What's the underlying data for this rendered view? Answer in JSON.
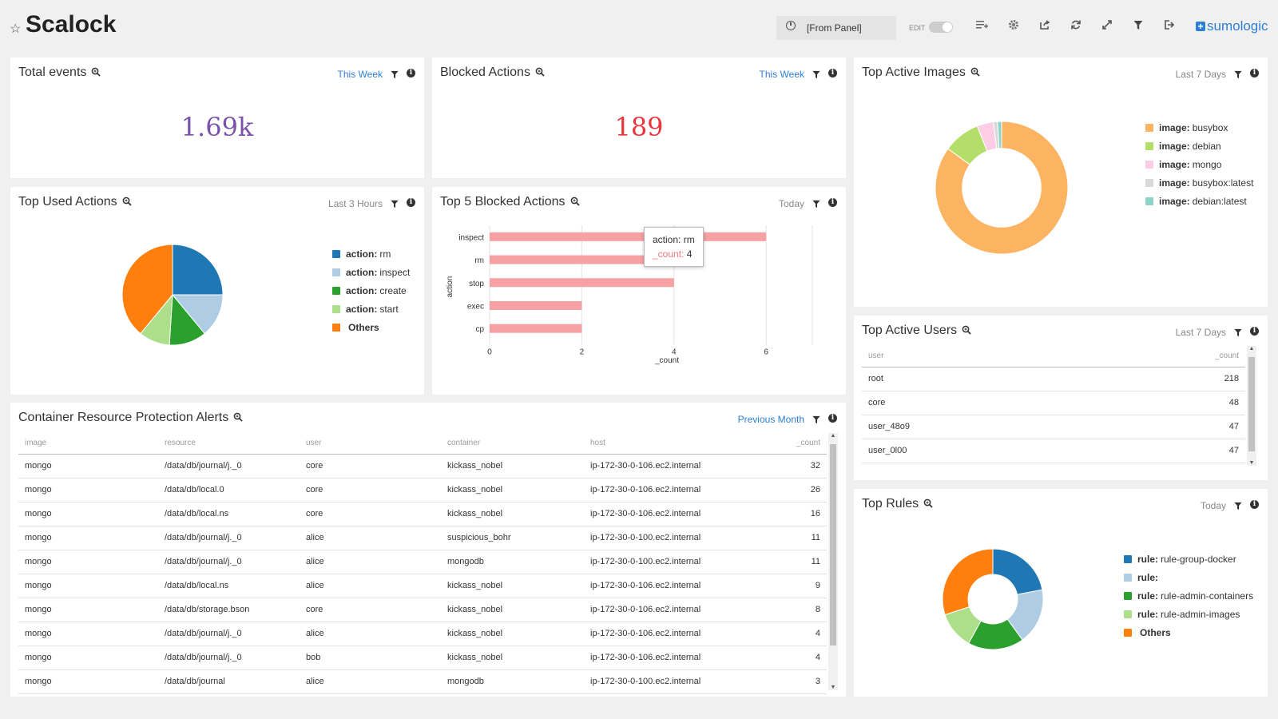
{
  "header": {
    "title": "Scalock",
    "time_range": "[From Panel]",
    "edit_label": "EDIT",
    "logo_text": "sumologic"
  },
  "colors": {
    "blue": "#1f77b4",
    "light_blue": "#aecde4",
    "green": "#2ca02c",
    "light_green": "#addf8a",
    "orange": "#ff7f0e",
    "peach": "#fdb462",
    "lime": "#b3de69",
    "pink": "#fccde5",
    "gray": "#d9d9d9",
    "teal": "#8dd3c7",
    "purple": "#7b52ab",
    "red": "#e8383d",
    "bar": "#f7a1a4"
  },
  "panels": {
    "total_events": {
      "title": "Total events",
      "time": "This Week",
      "value": "1.69k"
    },
    "blocked_actions": {
      "title": "Blocked Actions",
      "time": "This Week",
      "value": "189"
    },
    "top_used_actions": {
      "title": "Top Used Actions",
      "time": "Last 3 Hours",
      "legend": [
        {
          "key": "action:",
          "label": "rm"
        },
        {
          "key": "action:",
          "label": "inspect"
        },
        {
          "key": "action:",
          "label": "create"
        },
        {
          "key": "action:",
          "label": "start"
        },
        {
          "key": "",
          "label": "Others"
        }
      ]
    },
    "top5_blocked": {
      "title": "Top 5 Blocked Actions",
      "time": "Today",
      "ylabel": "action",
      "xlabel": "_count",
      "tooltip": {
        "key1": "action:",
        "val1": "rm",
        "key2": "_count:",
        "val2": "4"
      }
    },
    "top_active_images": {
      "title": "Top Active Images",
      "time": "Last 7 Days",
      "legend": [
        {
          "key": "image:",
          "label": "busybox"
        },
        {
          "key": "image:",
          "label": "debian"
        },
        {
          "key": "image:",
          "label": "mongo"
        },
        {
          "key": "image:",
          "label": "busybox:latest"
        },
        {
          "key": "image:",
          "label": "debian:latest"
        }
      ]
    },
    "top_active_users": {
      "title": "Top Active Users",
      "time": "Last 7 Days",
      "columns": [
        "user",
        "_count"
      ],
      "rows": [
        [
          "root",
          "218"
        ],
        [
          "core",
          "48"
        ],
        [
          "user_48o9",
          "47"
        ],
        [
          "user_0l00",
          "47"
        ]
      ]
    },
    "top_rules": {
      "title": "Top Rules",
      "time": "Today",
      "legend": [
        {
          "key": "rule:",
          "label": "rule-group-docker"
        },
        {
          "key": "rule:",
          "label": ""
        },
        {
          "key": "rule:",
          "label": "rule-admin-containers"
        },
        {
          "key": "rule:",
          "label": "rule-admin-images"
        },
        {
          "key": "",
          "label": "Others"
        }
      ]
    },
    "alerts": {
      "title": "Container Resource Protection Alerts",
      "time": "Previous Month",
      "columns": [
        "image",
        "resource",
        "user",
        "container",
        "host",
        "_count"
      ],
      "rows": [
        [
          "mongo",
          "/data/db/journal/j._0",
          "core",
          "kickass_nobel",
          "ip-172-30-0-106.ec2.internal",
          "32"
        ],
        [
          "mongo",
          "/data/db/local.0",
          "core",
          "kickass_nobel",
          "ip-172-30-0-106.ec2.internal",
          "26"
        ],
        [
          "mongo",
          "/data/db/local.ns",
          "core",
          "kickass_nobel",
          "ip-172-30-0-106.ec2.internal",
          "16"
        ],
        [
          "mongo",
          "/data/db/journal/j._0",
          "alice",
          "suspicious_bohr",
          "ip-172-30-0-100.ec2.internal",
          "11"
        ],
        [
          "mongo",
          "/data/db/journal/j._0",
          "alice",
          "mongodb",
          "ip-172-30-0-100.ec2.internal",
          "11"
        ],
        [
          "mongo",
          "/data/db/local.ns",
          "alice",
          "kickass_nobel",
          "ip-172-30-0-106.ec2.internal",
          "9"
        ],
        [
          "mongo",
          "/data/db/storage.bson",
          "core",
          "kickass_nobel",
          "ip-172-30-0-106.ec2.internal",
          "8"
        ],
        [
          "mongo",
          "/data/db/journal/j._0",
          "alice",
          "kickass_nobel",
          "ip-172-30-0-106.ec2.internal",
          "4"
        ],
        [
          "mongo",
          "/data/db/journal/j._0",
          "bob",
          "kickass_nobel",
          "ip-172-30-0-106.ec2.internal",
          "4"
        ],
        [
          "mongo",
          "/data/db/journal",
          "alice",
          "mongodb",
          "ip-172-30-0-100.ec2.internal",
          "3"
        ]
      ]
    }
  },
  "chart_data": [
    {
      "type": "pie",
      "title": "Top Used Actions",
      "labels": [
        "rm",
        "inspect",
        "create",
        "start",
        "Others"
      ],
      "values": [
        25,
        14,
        12,
        10,
        39
      ]
    },
    {
      "type": "bar",
      "orientation": "horizontal",
      "title": "Top 5 Blocked Actions",
      "categories": [
        "inspect",
        "rm",
        "stop",
        "exec",
        "cp"
      ],
      "values": [
        6,
        4,
        4,
        2,
        2
      ],
      "xlabel": "_count",
      "ylabel": "action",
      "xticks": [
        0,
        2,
        4,
        6
      ],
      "xlim": [
        0,
        7
      ]
    },
    {
      "type": "pie",
      "title": "Top Active Images",
      "donut": true,
      "labels": [
        "busybox",
        "debian",
        "mongo",
        "busybox:latest",
        "debian:latest"
      ],
      "values": [
        85,
        9,
        4,
        1,
        1
      ]
    },
    {
      "type": "pie",
      "title": "Top Rules",
      "donut": true,
      "labels": [
        "rule-group-docker",
        "",
        "rule-admin-containers",
        "rule-admin-images",
        "Others"
      ],
      "values": [
        22,
        18,
        18,
        12,
        30
      ]
    }
  ]
}
